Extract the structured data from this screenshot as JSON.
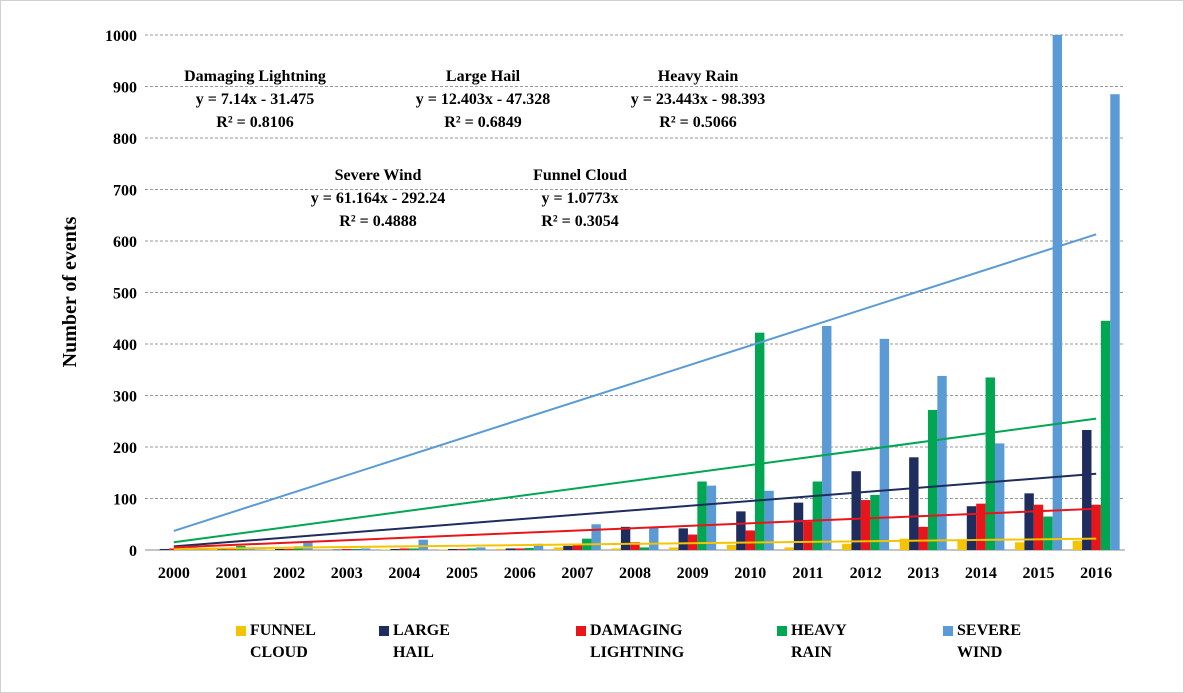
{
  "chart_data": {
    "type": "bar",
    "y_label": "Number of events",
    "categories": [
      "2000",
      "2001",
      "2002",
      "2003",
      "2004",
      "2005",
      "2006",
      "2007",
      "2008",
      "2009",
      "2010",
      "2011",
      "2012",
      "2013",
      "2014",
      "2015",
      "2016"
    ],
    "ylim": [
      0,
      1000
    ],
    "yticks": [
      0,
      100,
      200,
      300,
      400,
      500,
      600,
      700,
      800,
      900,
      1000
    ],
    "grid": true,
    "series": [
      {
        "name": "FUNNEL CLOUD",
        "color": "#f5c400",
        "values": [
          0,
          1,
          1,
          0,
          1,
          1,
          2,
          5,
          3,
          5,
          10,
          5,
          12,
          22,
          18,
          15,
          18
        ],
        "trend": [
          2,
          22
        ]
      },
      {
        "name": "LARGE HAIL",
        "color": "#1f2d5e",
        "values": [
          2,
          2,
          2,
          1,
          2,
          2,
          3,
          8,
          45,
          42,
          75,
          92,
          153,
          180,
          85,
          110,
          233
        ],
        "trend": [
          7,
          148
        ]
      },
      {
        "name": "DAMAGING LIGHTNING",
        "color": "#e8151a",
        "values": [
          3,
          3,
          2,
          2,
          3,
          2,
          3,
          10,
          15,
          30,
          38,
          55,
          97,
          45,
          90,
          88,
          88
        ],
        "trend": [
          5,
          80
        ]
      },
      {
        "name": "HEAVY RAIN",
        "color": "#00a651",
        "values": [
          2,
          8,
          7,
          2,
          3,
          3,
          4,
          22,
          5,
          133,
          422,
          133,
          107,
          272,
          335,
          65,
          445
        ],
        "trend": [
          15,
          255
        ]
      },
      {
        "name": "SEVERE WIND",
        "color": "#5b9bd5",
        "values": [
          5,
          5,
          15,
          3,
          20,
          5,
          12,
          50,
          45,
          125,
          115,
          435,
          410,
          338,
          207,
          1000,
          885
        ],
        "trend": [
          37,
          613
        ]
      }
    ],
    "annotations": [
      {
        "title": "Damaging Lightning",
        "equation": "y = 7.14x - 31.475",
        "r2": "R² = 0.8106"
      },
      {
        "title": "Large Hail",
        "equation": "y = 12.403x - 47.328",
        "r2": "R² = 0.6849"
      },
      {
        "title": "Heavy Rain",
        "equation": "y = 23.443x - 98.393",
        "r2": "R² = 0.5066"
      },
      {
        "title": "Severe Wind",
        "equation": "y = 61.164x - 292.24",
        "r2": "R² = 0.4888"
      },
      {
        "title": "Funnel Cloud",
        "equation": "y = 1.0773x",
        "r2": "R² = 0.3054"
      }
    ]
  }
}
